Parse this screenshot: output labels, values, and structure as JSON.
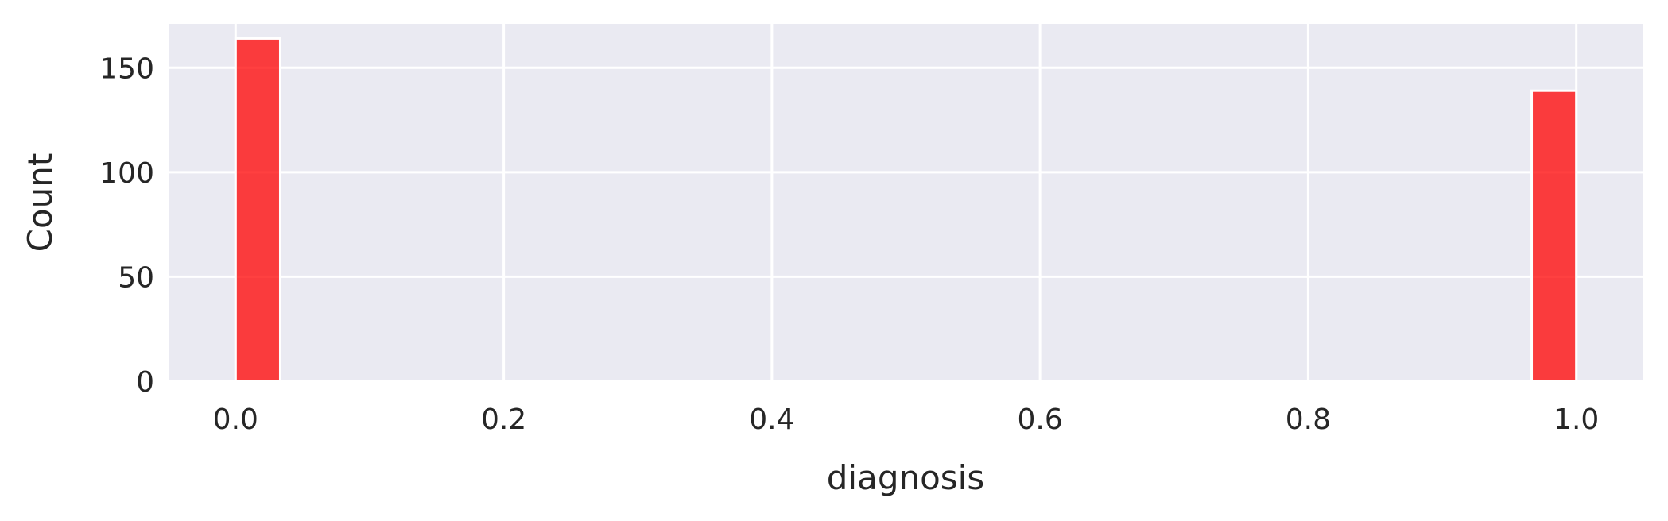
{
  "chart_data": {
    "type": "bar",
    "title": "",
    "xlabel": "diagnosis",
    "ylabel": "Count",
    "xlim": [
      -0.05,
      1.05
    ],
    "ylim": [
      0,
      171
    ],
    "x_ticks": [
      "0.0",
      "0.2",
      "0.4",
      "0.6",
      "0.8",
      "1.0"
    ],
    "y_ticks": [
      "0",
      "50",
      "100",
      "150"
    ],
    "grid": true,
    "legend": "none",
    "bin_width": 0.0333,
    "bins": [
      {
        "x_start": 0.0,
        "x_end": 0.0333,
        "count": 164
      },
      {
        "x_start": 0.9667,
        "x_end": 1.0,
        "count": 139
      }
    ],
    "colors": {
      "bar_fill": "#ff0000",
      "bar_opacity": 0.75,
      "bar_edge": "#ffffff",
      "plot_background": "#eaeaf2",
      "grid": "#ffffff",
      "text": "#262626"
    }
  }
}
